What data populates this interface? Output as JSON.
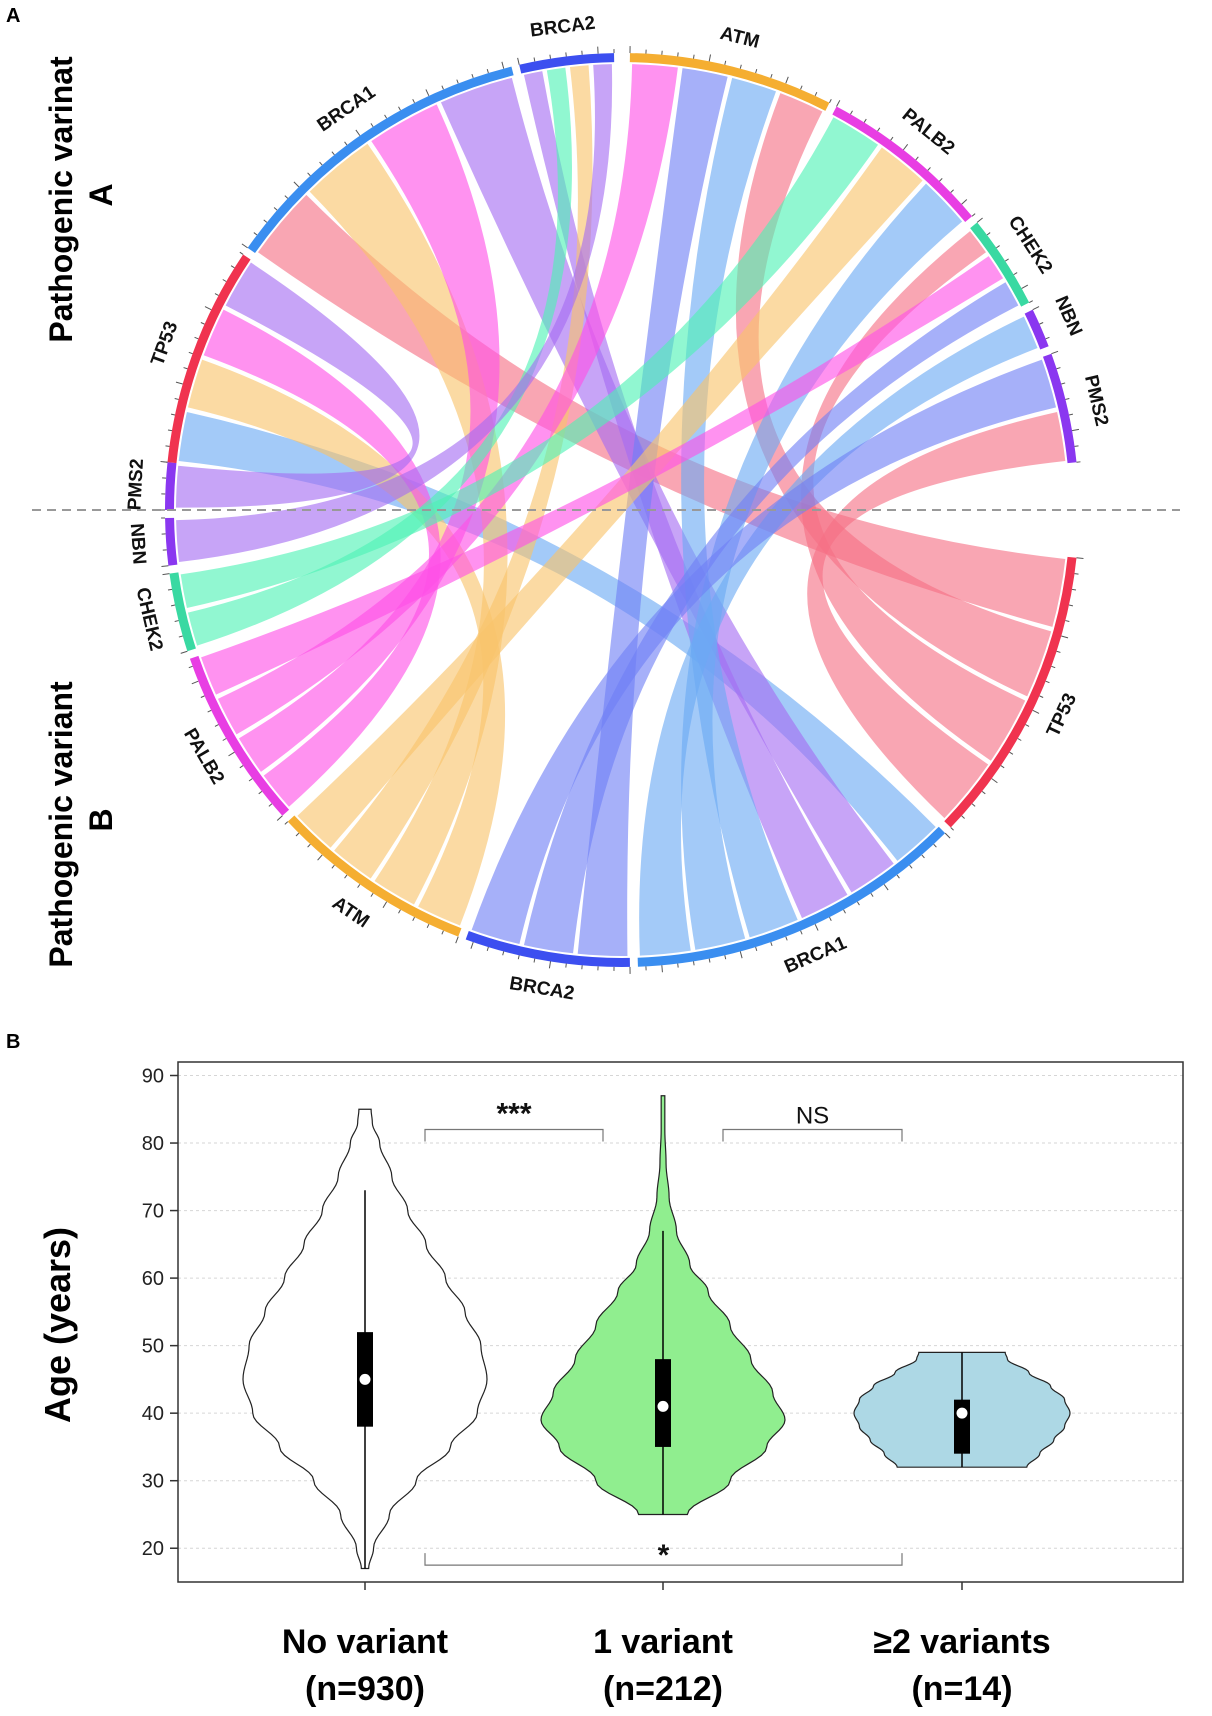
{
  "panel_labels": {
    "a": "A",
    "b": "B"
  },
  "chart_data": [
    {
      "type": "chord",
      "title": "",
      "groups_top_label": "Pathogenic varinat A",
      "groups_bottom_label": "Pathogenic variant B",
      "genes": [
        "TP53",
        "BRCA1",
        "BRCA2",
        "ATM",
        "PALB2",
        "CHEK2",
        "NBN",
        "PMS2"
      ],
      "gene_colors": {
        "TP53": "#f0334f",
        "BRCA1": "#3a8ef0",
        "BRCA2": "#3c4ff0",
        "ATM": "#f5ae31",
        "PALB2": "#e83ee3",
        "CHEK2": "#39d9a2",
        "NBN": "#8a37f0",
        "PMS2": "#8a37f0"
      },
      "links": [
        {
          "a": "TP53",
          "b": "BRCA1",
          "color": "#6aa9f4"
        },
        {
          "a": "TP53",
          "b": "ATM",
          "color": "#f8c36a"
        },
        {
          "a": "TP53",
          "b": "PALB2",
          "color": "#ff4fe6"
        },
        {
          "a": "BRCA1",
          "b": "TP53",
          "color": "#f56f84"
        },
        {
          "a": "BRCA1",
          "b": "ATM",
          "color": "#f8c36a"
        },
        {
          "a": "BRCA1",
          "b": "PALB2",
          "color": "#ff4fe6"
        },
        {
          "a": "BRCA1",
          "b": "BRCA1",
          "color": "#a56cf2"
        },
        {
          "a": "BRCA2",
          "b": "BRCA1",
          "color": "#a56cf2"
        },
        {
          "a": "BRCA2",
          "b": "CHEK2",
          "color": "#4df2b4"
        },
        {
          "a": "BRCA2",
          "b": "ATM",
          "color": "#f8c36a"
        },
        {
          "a": "ATM",
          "b": "PALB2",
          "color": "#ff4fe6"
        },
        {
          "a": "ATM",
          "b": "BRCA2",
          "color": "#6f7ff5"
        },
        {
          "a": "ATM",
          "b": "BRCA1",
          "color": "#6aa9f4"
        },
        {
          "a": "ATM",
          "b": "TP53",
          "color": "#f56f84"
        },
        {
          "a": "PALB2",
          "b": "CHEK2",
          "color": "#4df2b4"
        },
        {
          "a": "PALB2",
          "b": "ATM",
          "color": "#f8c36a"
        },
        {
          "a": "PALB2",
          "b": "BRCA1",
          "color": "#6aa9f4"
        },
        {
          "a": "CHEK2",
          "b": "TP53",
          "color": "#f56f84"
        },
        {
          "a": "CHEK2",
          "b": "PALB2",
          "color": "#ff4fe6"
        },
        {
          "a": "CHEK2",
          "b": "BRCA2",
          "color": "#6f7ff5"
        },
        {
          "a": "NBN",
          "b": "BRCA1",
          "color": "#6aa9f4"
        },
        {
          "a": "PMS2",
          "b": "BRCA2",
          "color": "#6f7ff5"
        },
        {
          "a": "PMS2",
          "b": "TP53",
          "color": "#f56f84"
        },
        {
          "a": "TP53",
          "b": "PMS2",
          "color": "#a56cf2"
        },
        {
          "a": "BRCA2",
          "b": "NBN",
          "color": "#a56cf2"
        }
      ]
    },
    {
      "type": "violin",
      "title": "",
      "ylabel": "Age (years)",
      "xlabel": "",
      "ylim": [
        15,
        92
      ],
      "yticks": [
        20,
        30,
        40,
        50,
        60,
        70,
        80,
        90
      ],
      "grid": true,
      "categories": [
        {
          "label": "No variant",
          "n_label": "(n=930)",
          "fill": "#ffffff",
          "min": 17,
          "max": 85,
          "q1": 38,
          "median": 45,
          "q3": 52,
          "whisker_low": 17,
          "whisker_high": 73,
          "density_profile": [
            [
              17,
              3
            ],
            [
              20,
              7
            ],
            [
              25,
              20
            ],
            [
              30,
              42
            ],
            [
              35,
              70
            ],
            [
              40,
              92
            ],
            [
              45,
              100
            ],
            [
              50,
              95
            ],
            [
              55,
              82
            ],
            [
              60,
              66
            ],
            [
              65,
              50
            ],
            [
              70,
              35
            ],
            [
              75,
              22
            ],
            [
              80,
              12
            ],
            [
              83,
              6
            ],
            [
              85,
              5
            ]
          ]
        },
        {
          "label": "1 variant",
          "n_label": "(n=212)",
          "fill": "#90ee8f",
          "min": 25,
          "max": 87,
          "q1": 35,
          "median": 41,
          "q3": 48,
          "whisker_low": 25,
          "whisker_high": 67,
          "density_profile": [
            [
              25,
              20
            ],
            [
              30,
              55
            ],
            [
              35,
              85
            ],
            [
              39,
              100
            ],
            [
              43,
              90
            ],
            [
              48,
              72
            ],
            [
              53,
              55
            ],
            [
              58,
              37
            ],
            [
              62,
              22
            ],
            [
              67,
              11
            ],
            [
              72,
              5
            ],
            [
              77,
              2.5
            ],
            [
              82,
              1.5
            ],
            [
              87,
              1.5
            ]
          ]
        },
        {
          "label": "≥2 variants",
          "n_label": "(n=14)",
          "fill": "#add8e5",
          "min": 32,
          "max": 49,
          "q1": 34,
          "median": 40,
          "q3": 42,
          "whisker_low": 32,
          "whisker_high": 49,
          "density_profile": [
            [
              32,
              60
            ],
            [
              34,
              72
            ],
            [
              36,
              85
            ],
            [
              38,
              95
            ],
            [
              40,
              100
            ],
            [
              42,
              95
            ],
            [
              44,
              82
            ],
            [
              46,
              62
            ],
            [
              48,
              42
            ],
            [
              49,
              40
            ]
          ]
        }
      ],
      "annotations": [
        {
          "from": "No variant",
          "to": "1 variant",
          "label": "***",
          "y": 82
        },
        {
          "from": "1 variant",
          "to": "≥2 variants",
          "label": "NS",
          "y": 82
        },
        {
          "from": "No variant",
          "to": "≥2 variants",
          "label": "*",
          "y": 17.5
        }
      ]
    }
  ]
}
